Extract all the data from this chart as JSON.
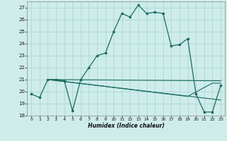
{
  "xlabel": "Humidex (Indice chaleur)",
  "bg_color": "#ceecea",
  "grid_color": "#aad8d5",
  "line_color": "#1a6b5e",
  "xlim": [
    -0.5,
    23.5
  ],
  "ylim": [
    18,
    27.5
  ],
  "yticks": [
    18,
    19,
    20,
    21,
    22,
    23,
    24,
    25,
    26,
    27
  ],
  "xticks": [
    0,
    1,
    2,
    3,
    4,
    5,
    6,
    7,
    8,
    9,
    10,
    11,
    12,
    13,
    14,
    15,
    16,
    17,
    18,
    19,
    20,
    21,
    22,
    23
  ],
  "series1_x": [
    0,
    1,
    2,
    3,
    4,
    5,
    6,
    7,
    8,
    9,
    10,
    11,
    12,
    13,
    14,
    15,
    16,
    17,
    18,
    19,
    20,
    21,
    22,
    23
  ],
  "series1_y": [
    19.8,
    19.5,
    21.0,
    21.0,
    20.9,
    18.4,
    21.0,
    22.0,
    23.0,
    23.2,
    25.0,
    26.5,
    26.2,
    27.2,
    26.5,
    26.6,
    26.5,
    23.8,
    23.9,
    24.4,
    19.8,
    18.3,
    18.3,
    20.5
  ],
  "series2_x": [
    2,
    22,
    23
  ],
  "series2_y": [
    21.0,
    20.9,
    20.9
  ],
  "series3_x": [
    2,
    19,
    22,
    23
  ],
  "series3_y": [
    21.0,
    19.6,
    20.7,
    20.7
  ],
  "series4_x": [
    2,
    23
  ],
  "series4_y": [
    21.0,
    19.3
  ]
}
